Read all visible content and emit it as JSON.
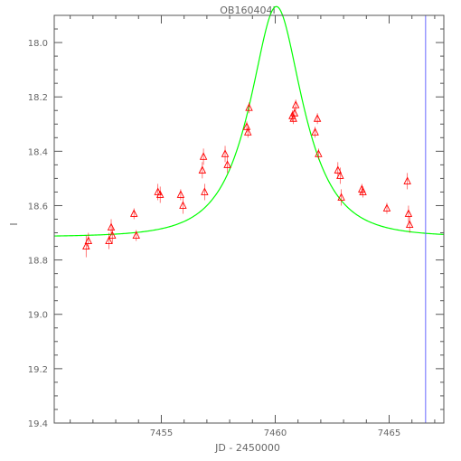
{
  "chart_data": {
    "type": "scatter",
    "title": "OB160404I",
    "xlabel": "JD - 2450000",
    "ylabel": "I",
    "xlim": [
      7450.3,
      7467.4
    ],
    "ylim": [
      19.4,
      17.9
    ],
    "y_inverted": true,
    "x_ticks": [
      7455,
      7460,
      7465
    ],
    "x_tick_labels": [
      "7455",
      "7460",
      "7465"
    ],
    "y_ticks": [
      18.0,
      18.2,
      18.4,
      18.6,
      18.8,
      19.0,
      19.2,
      19.4
    ],
    "y_tick_labels": [
      "18.0",
      "18.2",
      "18.4",
      "18.6",
      "18.8",
      "19.0",
      "19.2",
      "19.4"
    ],
    "grid": false,
    "series": [
      {
        "type": "scatter",
        "marker": "triangle",
        "color": "#ff0000",
        "points": [
          {
            "x": 7451.7,
            "y": 18.75,
            "err": 0.04
          },
          {
            "x": 7451.8,
            "y": 18.73,
            "err": 0.03
          },
          {
            "x": 7452.7,
            "y": 18.73,
            "err": 0.03
          },
          {
            "x": 7452.8,
            "y": 18.68,
            "err": 0.03
          },
          {
            "x": 7452.85,
            "y": 18.71,
            "err": 0.03
          },
          {
            "x": 7453.8,
            "y": 18.63,
            "err": 0.02
          },
          {
            "x": 7453.9,
            "y": 18.71,
            "err": 0.02
          },
          {
            "x": 7454.85,
            "y": 18.55,
            "err": 0.03
          },
          {
            "x": 7454.95,
            "y": 18.56,
            "err": 0.03
          },
          {
            "x": 7455.85,
            "y": 18.56,
            "err": 0.02
          },
          {
            "x": 7455.95,
            "y": 18.6,
            "err": 0.03
          },
          {
            "x": 7456.8,
            "y": 18.47,
            "err": 0.03
          },
          {
            "x": 7456.85,
            "y": 18.42,
            "err": 0.03
          },
          {
            "x": 7456.9,
            "y": 18.55,
            "err": 0.03
          },
          {
            "x": 7457.8,
            "y": 18.41,
            "err": 0.03
          },
          {
            "x": 7457.9,
            "y": 18.45,
            "err": 0.03
          },
          {
            "x": 7458.75,
            "y": 18.31,
            "err": 0.02
          },
          {
            "x": 7458.8,
            "y": 18.33,
            "err": 0.02
          },
          {
            "x": 7458.85,
            "y": 18.24,
            "err": 0.02
          },
          {
            "x": 7460.75,
            "y": 18.27,
            "err": 0.02
          },
          {
            "x": 7460.8,
            "y": 18.28,
            "err": 0.02
          },
          {
            "x": 7460.85,
            "y": 18.26,
            "err": 0.02
          },
          {
            "x": 7460.9,
            "y": 18.23,
            "err": 0.02
          },
          {
            "x": 7461.75,
            "y": 18.33,
            "err": 0.02
          },
          {
            "x": 7461.85,
            "y": 18.28,
            "err": 0.02
          },
          {
            "x": 7461.9,
            "y": 18.41,
            "err": 0.02
          },
          {
            "x": 7462.75,
            "y": 18.47,
            "err": 0.03
          },
          {
            "x": 7462.85,
            "y": 18.49,
            "err": 0.03
          },
          {
            "x": 7462.9,
            "y": 18.57,
            "err": 0.03
          },
          {
            "x": 7463.8,
            "y": 18.54,
            "err": 0.02
          },
          {
            "x": 7463.85,
            "y": 18.55,
            "err": 0.02
          },
          {
            "x": 7464.9,
            "y": 18.61,
            "err": 0.02
          },
          {
            "x": 7465.8,
            "y": 18.51,
            "err": 0.03
          },
          {
            "x": 7465.85,
            "y": 18.63,
            "err": 0.03
          },
          {
            "x": 7465.9,
            "y": 18.67,
            "err": 0.03
          }
        ]
      },
      {
        "type": "line",
        "color": "#00ff00",
        "model": "microlensing",
        "t0": 7460.05,
        "tE": 2.0,
        "u0": 0.5,
        "baseline": 18.715
      }
    ],
    "vertical_line": {
      "x": 7466.6,
      "color": "#6666ff"
    }
  }
}
